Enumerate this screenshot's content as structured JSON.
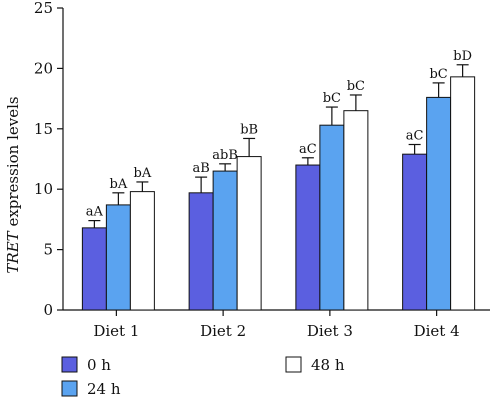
{
  "chart_data": {
    "type": "bar",
    "ylabel_italic": "TRET",
    "ylabel_rest": " expression levels",
    "ylim": [
      0,
      25
    ],
    "yticks": [
      0,
      5,
      10,
      15,
      20,
      25
    ],
    "grid": false,
    "categories": [
      "Diet 1",
      "Diet 2",
      "Diet 3",
      "Diet 4"
    ],
    "series": [
      {
        "name": "0 h",
        "color": "#5b5fe0",
        "values": [
          6.8,
          9.7,
          12.0,
          12.9
        ],
        "errors": [
          0.6,
          1.3,
          0.6,
          0.8
        ],
        "labels": [
          "aA",
          "aB",
          "aC",
          "aC"
        ]
      },
      {
        "name": "24 h",
        "color": "#5aa3f0",
        "values": [
          8.7,
          11.5,
          15.3,
          17.6
        ],
        "errors": [
          1.0,
          0.6,
          1.5,
          1.2
        ],
        "labels": [
          "bA",
          "abB",
          "bC",
          "bC"
        ]
      },
      {
        "name": "48 h",
        "color": "#ffffff",
        "values": [
          9.8,
          12.7,
          16.5,
          19.3
        ],
        "errors": [
          0.8,
          1.5,
          1.3,
          1.0
        ],
        "labels": [
          "bA",
          "bB",
          "bC",
          "bD"
        ]
      }
    ],
    "legend_position": "bottom"
  }
}
